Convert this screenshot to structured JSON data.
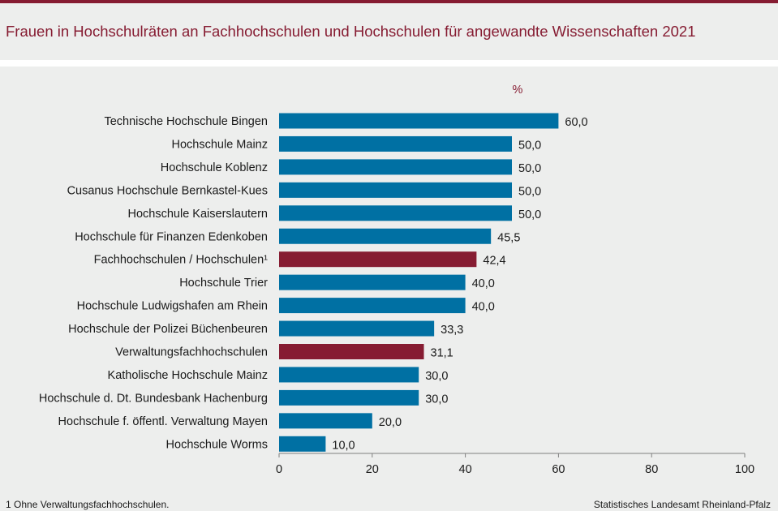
{
  "title": "Frauen in Hochschulräten an Fachhochschulen und Hochschulen für angewandte Wissenschaften 2021",
  "colors": {
    "primary": "#0070a3",
    "highlight": "#861c32",
    "title": "#861c32"
  },
  "footnote": "1 Ohne Verwaltungsfachhochschulen.",
  "source": "Statistisches Landesamt Rheinland-Pfalz",
  "chart_data": {
    "type": "bar",
    "orientation": "horizontal",
    "title": "Frauen in Hochschulräten an Fachhochschulen und Hochschulen für angewandte Wissenschaften 2021",
    "unit": "%",
    "xlabel": "",
    "ylabel": "",
    "xlim": [
      0,
      100
    ],
    "xticks": [
      0,
      20,
      40,
      60,
      80,
      100
    ],
    "grid": false,
    "categories": [
      "Technische Hochschule Bingen",
      "Hochschule Mainz",
      "Hochschule Koblenz",
      "Cusanus Hochschule Bernkastel-Kues",
      "Hochschule Kaiserslautern",
      "Hochschule für Finanzen Edenkoben",
      "Fachhochschulen / Hochschulen¹",
      "Hochschule Trier",
      "Hochschule Ludwigshafen am Rhein",
      "Hochschule der Polizei Büchenbeuren",
      "Verwaltungsfachhochschulen",
      "Katholische Hochschule Mainz",
      "Hochschule d. Dt. Bundesbank Hachenburg",
      "Hochschule f. öffentl. Verwaltung Mayen",
      "Hochschule Worms"
    ],
    "values": [
      60.0,
      50.0,
      50.0,
      50.0,
      50.0,
      45.5,
      42.4,
      40.0,
      40.0,
      33.3,
      31.1,
      30.0,
      30.0,
      20.0,
      10.0
    ],
    "value_labels": [
      "60,0",
      "50,0",
      "50,0",
      "50,0",
      "50,0",
      "45,5",
      "42,4",
      "40,0",
      "40,0",
      "33,3",
      "31,1",
      "30,0",
      "30,0",
      "20,0",
      "10,0"
    ],
    "highlighted": [
      false,
      false,
      false,
      false,
      false,
      false,
      true,
      false,
      false,
      false,
      true,
      false,
      false,
      false,
      false
    ]
  }
}
